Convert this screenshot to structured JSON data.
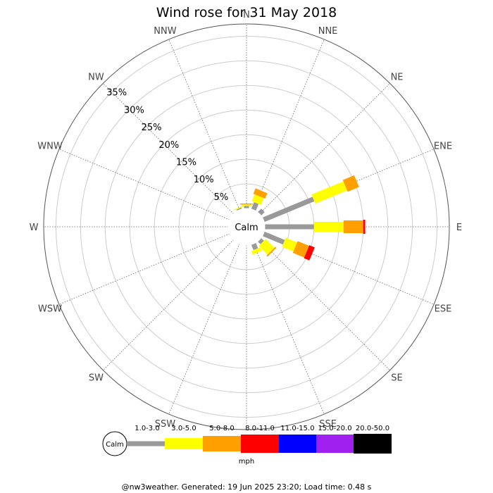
{
  "chart_data": {
    "type": "wind-rose",
    "title": "Wind rose for 31 May 2018",
    "directions": [
      "N",
      "NNE",
      "NE",
      "ENE",
      "E",
      "ESE",
      "SE",
      "SSE",
      "S",
      "SSW",
      "SW",
      "WSW",
      "W",
      "WNW",
      "NW",
      "NNW"
    ],
    "radial_labels": [
      "5%",
      "10%",
      "15%",
      "20%",
      "25%",
      "30%",
      "35%"
    ],
    "radial_max_percent": 37.5,
    "calm_label": "Calm",
    "bins": [
      "1.0-3.0",
      "3.0-5.0",
      "5.0-8.0",
      "8.0-11.0",
      "11.0-15.0",
      "15.0-20.0",
      "20.0-50.0"
    ],
    "bin_colors": [
      "#999999",
      "#ffff00",
      "#ff9f00",
      "#ff0000",
      "#0000ff",
      "#a020f0",
      "#000000"
    ],
    "unit": "mph",
    "series": [
      {
        "direction": "N",
        "values": [
          0.5,
          0.3,
          0.2,
          0,
          0,
          0,
          0
        ]
      },
      {
        "direction": "NNE",
        "values": [
          1.5,
          1.5,
          1.2,
          0,
          0,
          0,
          0
        ]
      },
      {
        "direction": "NE",
        "values": [
          1.0,
          0,
          0,
          0,
          0,
          0,
          0
        ]
      },
      {
        "direction": "ENE",
        "values": [
          11.0,
          7.0,
          2.5,
          0,
          0,
          0,
          0
        ]
      },
      {
        "direction": "E",
        "values": [
          10.0,
          6.0,
          4.0,
          0.4,
          0,
          0,
          0
        ]
      },
      {
        "direction": "ESE",
        "values": [
          4.5,
          2.5,
          2.5,
          1.2,
          0,
          0,
          0
        ]
      },
      {
        "direction": "SE",
        "values": [
          0.8,
          2.5,
          0.3,
          0,
          0,
          0,
          0
        ]
      },
      {
        "direction": "SSE",
        "values": [
          1.2,
          0.8,
          0,
          0,
          0,
          0,
          0
        ]
      },
      {
        "direction": "S",
        "values": [
          0,
          0,
          0,
          0,
          0,
          0,
          0
        ]
      },
      {
        "direction": "SSW",
        "values": [
          0,
          0,
          0,
          0,
          0,
          0,
          0
        ]
      },
      {
        "direction": "SW",
        "values": [
          0,
          0,
          0,
          0,
          0,
          0,
          0
        ]
      },
      {
        "direction": "WSW",
        "values": [
          0,
          0,
          0,
          0,
          0,
          0,
          0
        ]
      },
      {
        "direction": "W",
        "values": [
          0,
          0,
          0,
          0,
          0,
          0,
          0
        ]
      },
      {
        "direction": "WNW",
        "values": [
          0,
          0,
          0,
          0,
          0,
          0,
          0
        ]
      },
      {
        "direction": "NW",
        "values": [
          0,
          0,
          0,
          0,
          0,
          0,
          0
        ]
      },
      {
        "direction": "NNW",
        "values": [
          0.3,
          0.2,
          0,
          0,
          0,
          0,
          0
        ]
      }
    ]
  },
  "footer": "@nw3weather. Generated: 19 Jun 2025 23:20; Load time: 0.48 s"
}
